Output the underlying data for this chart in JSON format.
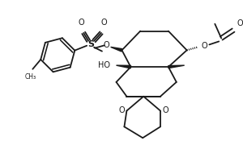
{
  "bg_color": "#ffffff",
  "line_color": "#1a1a1a",
  "lw": 1.3,
  "fig_w": 3.0,
  "fig_h": 1.9,
  "dpi": 100,
  "xlim": [
    0,
    300
  ],
  "ylim": [
    0,
    190
  ]
}
